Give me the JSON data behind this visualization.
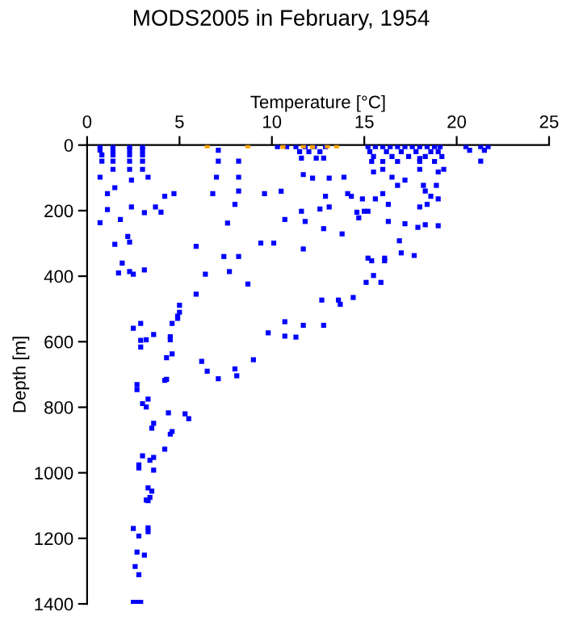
{
  "chart_data": {
    "type": "scatter",
    "title": "MODS2005 in February, 1954",
    "xlabel": "Temperature [°C]",
    "ylabel": "Depth [m]",
    "xlim": [
      0,
      25
    ],
    "xticks": [
      0,
      5,
      10,
      15,
      20,
      25
    ],
    "ylim": [
      1400,
      0
    ],
    "yticks": [
      0,
      200,
      400,
      600,
      800,
      1000,
      1200,
      1400
    ],
    "grid": false,
    "marker": "square",
    "series": [
      {
        "color": "#0000ff",
        "x": [
          0.7,
          0.7,
          0.8,
          0.8,
          0.7,
          1.1,
          1.1,
          0.7,
          1.4,
          1.4,
          1.4,
          1.4,
          1.4,
          1.5,
          2.3,
          2.3,
          2.3,
          2.3,
          2.3,
          2.4,
          2.4,
          3.0,
          3.0,
          3.0,
          3.0,
          3.0,
          3.3,
          3.1,
          1.8,
          1.5,
          2.2,
          2.3,
          1.9,
          1.7,
          2.3,
          2.5,
          3.1,
          4.2,
          4.7,
          3.7,
          4.0,
          7.0,
          7.1,
          7.1,
          6.8,
          8.2,
          8.2,
          8.2,
          8.0,
          7.6,
          5.9,
          7.4,
          8.2,
          7.7,
          6.4,
          8.7,
          5.9,
          5.0,
          4.9,
          9.6,
          10.5,
          9.4,
          10.1,
          10.7,
          11.6,
          11.8,
          11.7,
          12.8,
          12.6,
          13.1,
          13.8,
          12.9,
          13.1,
          12.2,
          11.7,
          13.9,
          14.1,
          14.3,
          14.6,
          14.7,
          15.0,
          15.2,
          14.9,
          10.3,
          10.8,
          11.3,
          11.8,
          12.3,
          12.9,
          11.5,
          12.0,
          12.6,
          11.6,
          12.4,
          12.8,
          15.2,
          15.6,
          16.0,
          16.4,
          16.8,
          17.2,
          17.6,
          18.0,
          18.4,
          18.8,
          19.1,
          15.3,
          16.2,
          17.0,
          17.8,
          18.6,
          19.0,
          15.5,
          16.5,
          17.4,
          18.3,
          19.2,
          15.4,
          16.0,
          16.8,
          18.0,
          18.8,
          12.7,
          13.6,
          13.7,
          14.4,
          15.1,
          15.5,
          15.9,
          16.1,
          16.1,
          15.2,
          15.4,
          16.9,
          17.0,
          17.2,
          17.7,
          17.9,
          18.3,
          19.0,
          16.3,
          16.3,
          15.6,
          16.0,
          15.5,
          16.0,
          16.5,
          16.8,
          17.2,
          18.0,
          18.0,
          18.2,
          18.3,
          18.6,
          19.0,
          19.3,
          18.9,
          18.4,
          18.0,
          19.0,
          20.5,
          20.7,
          21.3,
          21.3,
          21.5,
          21.7,
          2.5,
          2.9,
          2.9,
          2.9,
          3.2,
          3.6,
          4.5,
          4.5,
          4.6,
          4.9,
          5.0,
          4.3,
          4.6,
          6.2,
          6.5,
          7.1,
          8.0,
          8.1,
          9.0,
          9.8,
          10.7,
          10.7,
          11.3,
          11.7,
          12.8,
          2.7,
          2.7,
          3.0,
          3.2,
          3.3,
          4.3,
          4.2,
          4.4,
          5.3,
          5.5,
          3.5,
          3.6,
          4.5,
          4.6,
          4.2,
          3.6,
          3.4,
          3.0,
          2.8,
          2.8,
          3.6,
          3.3,
          3.5,
          3.2,
          3.3,
          3.4,
          2.5,
          2.8,
          3.3,
          3.3,
          2.7,
          3.1,
          2.6,
          2.8,
          2.5,
          2.7,
          2.9
        ],
        "values": [
          5,
          15,
          30,
          49,
          98,
          148,
          197,
          237,
          5,
          15,
          30,
          49,
          74,
          130,
          5,
          15,
          30,
          49,
          74,
          107,
          189,
          5,
          15,
          30,
          49,
          74,
          98,
          206,
          227,
          303,
          279,
          296,
          360,
          390,
          386,
          394,
          381,
          156,
          148,
          189,
          205,
          98,
          49,
          16,
          148,
          140,
          98,
          49,
          181,
          238,
          309,
          340,
          340,
          386,
          394,
          424,
          455,
          489,
          522,
          148,
          141,
          299,
          299,
          227,
          202,
          233,
          317,
          255,
          195,
          189,
          271,
          156,
          101,
          101,
          90,
          98,
          148,
          156,
          205,
          222,
          202,
          202,
          164,
          5,
          5,
          5,
          5,
          5,
          5,
          20,
          20,
          20,
          40,
          40,
          40,
          5,
          5,
          5,
          5,
          5,
          5,
          5,
          5,
          5,
          5,
          5,
          20,
          20,
          20,
          20,
          20,
          20,
          35,
          35,
          35,
          35,
          35,
          50,
          50,
          50,
          50,
          50,
          473,
          473,
          486,
          465,
          419,
          398,
          419,
          345,
          353,
          345,
          353,
          292,
          329,
          240,
          337,
          251,
          243,
          246,
          233,
          181,
          164,
          148,
          82,
          74,
          98,
          123,
          107,
          41,
          74,
          123,
          140,
          156,
          82,
          74,
          123,
          181,
          189,
          164,
          5,
          16,
          5,
          49,
          16,
          5,
          559,
          544,
          596,
          616,
          594,
          578,
          594,
          585,
          544,
          529,
          510,
          649,
          637,
          660,
          690,
          713,
          683,
          704,
          655,
          573,
          539,
          583,
          586,
          550,
          550,
          731,
          746,
          789,
          799,
          775,
          715,
          718,
          817,
          820,
          835,
          864,
          849,
          882,
          874,
          928,
          953,
          962,
          948,
          976,
          985,
          992,
          1046,
          1056,
          1083,
          1085,
          1075,
          1170,
          1193,
          1168,
          1180,
          1242,
          1251,
          1286,
          1311,
          1395,
          1395,
          1395
        ]
      },
      {
        "color": "#ffa500",
        "x": [
          6.5,
          8.7,
          10.6,
          11.7,
          12.2,
          13.0,
          13.5
        ],
        "values": [
          2,
          2,
          4,
          2,
          4,
          2,
          2
        ]
      }
    ]
  }
}
